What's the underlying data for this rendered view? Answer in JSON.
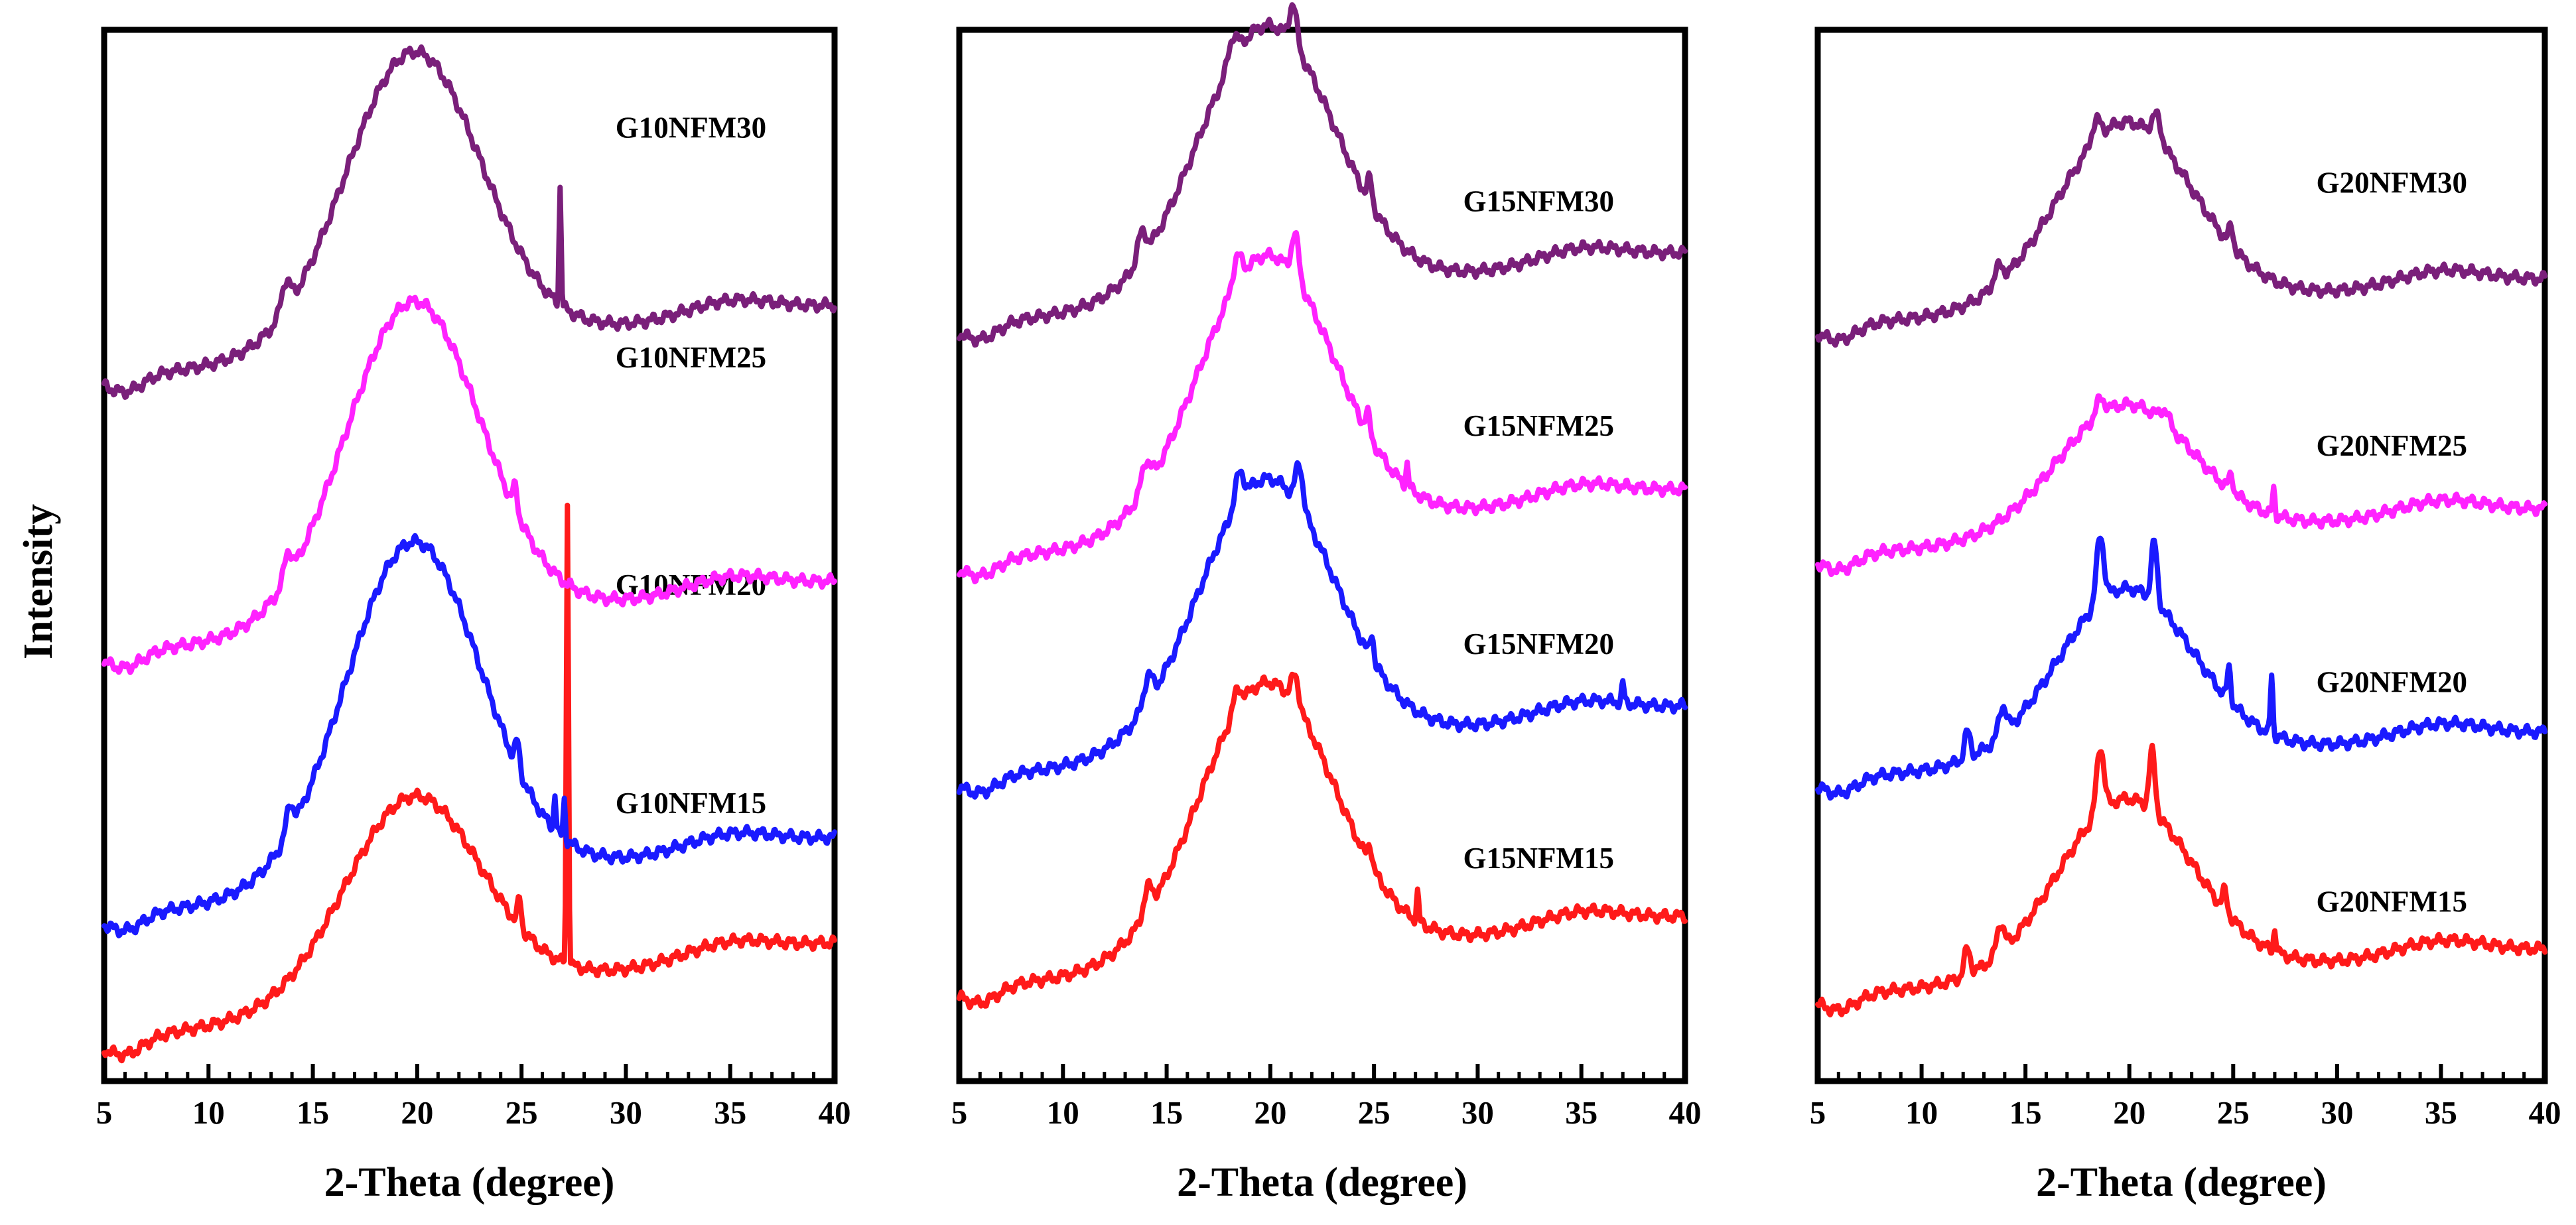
{
  "figure": {
    "ylabel": "Intensity"
  },
  "chart_data": [
    {
      "type": "line",
      "title": "",
      "xlabel": "2-Theta (degree)",
      "ylabel": "Intensity",
      "xlim": [
        5,
        40
      ],
      "ylim": [
        0,
        8
      ],
      "xticks": [
        "5",
        "10",
        "15",
        "20",
        "25",
        "30",
        "35",
        "40"
      ],
      "series": [
        {
          "name": "G10NFM15",
          "color": "#ff1a1a",
          "base": 0.3,
          "bump": 1.55,
          "tail": 0.75,
          "label": {
            "x": 29.5,
            "y": 2.04
          },
          "peaks": [
            {
              "x": 27.2,
              "h": 3.5,
              "w": 0.07
            },
            {
              "x": 24.9,
              "h": 0.22,
              "w": 0.12
            }
          ]
        },
        {
          "name": "G10NFM20",
          "color": "#1a1aff",
          "base": 1.25,
          "bump": 2.6,
          "tail": 0.6,
          "label": {
            "x": 29.5,
            "y": 3.7
          },
          "peaks": [
            {
              "x": 26.6,
              "h": 0.28,
              "w": 0.07
            },
            {
              "x": 27.05,
              "h": 0.3,
              "w": 0.07
            },
            {
              "x": 13.9,
              "h": 0.2,
              "w": 0.25
            },
            {
              "x": 24.8,
              "h": 0.2,
              "w": 0.15
            }
          ]
        },
        {
          "name": "G10NFM25",
          "color": "#ff22ff",
          "base": 3.25,
          "bump": 2.45,
          "tail": 0.55,
          "label": {
            "x": 29.5,
            "y": 5.43
          },
          "peaks": [
            {
              "x": 13.8,
              "h": 0.2,
              "w": 0.25
            },
            {
              "x": 24.7,
              "h": 0.18,
              "w": 0.15
            }
          ]
        },
        {
          "name": "G10NFM30",
          "color": "#7a1f7a",
          "base": 5.35,
          "bump": 2.25,
          "tail": 0.55,
          "label": {
            "x": 29.5,
            "y": 7.18
          },
          "peaks": [
            {
              "x": 26.85,
              "h": 0.9,
              "w": 0.07
            },
            {
              "x": 13.7,
              "h": 0.22,
              "w": 0.3
            }
          ]
        }
      ]
    },
    {
      "type": "line",
      "title": "",
      "xlabel": "2-Theta (degree)",
      "ylabel": "",
      "xlim": [
        5,
        40
      ],
      "ylim": [
        0,
        8
      ],
      "xticks": [
        "5",
        "10",
        "15",
        "20",
        "25",
        "30",
        "35",
        "40"
      ],
      "series": [
        {
          "name": "G15NFM15",
          "color": "#ff1a1a",
          "base": 0.7,
          "bump": 2.1,
          "tail": 0.55,
          "label": {
            "x": 29.3,
            "y": 1.62
          },
          "peaks": [
            {
              "x": 18.4,
              "h": 0.15,
              "w": 0.3
            },
            {
              "x": 21.2,
              "h": 0.22,
              "w": 0.25
            },
            {
              "x": 27.1,
              "h": 0.22,
              "w": 0.08
            },
            {
              "x": 24.8,
              "h": 0.15,
              "w": 0.15
            },
            {
              "x": 14.1,
              "h": 0.18,
              "w": 0.3
            }
          ]
        },
        {
          "name": "G15NFM20",
          "color": "#1a1aff",
          "base": 2.3,
          "bump": 2.05,
          "tail": 0.55,
          "label": {
            "x": 29.3,
            "y": 3.25
          },
          "peaks": [
            {
              "x": 18.5,
              "h": 0.22,
              "w": 0.3
            },
            {
              "x": 21.4,
              "h": 0.32,
              "w": 0.25
            },
            {
              "x": 24.9,
              "h": 0.2,
              "w": 0.12
            },
            {
              "x": 37.0,
              "h": 0.15,
              "w": 0.08
            },
            {
              "x": 14.1,
              "h": 0.2,
              "w": 0.3
            }
          ]
        },
        {
          "name": "G15NFM25",
          "color": "#ff22ff",
          "base": 3.95,
          "bump": 2.1,
          "tail": 0.55,
          "label": {
            "x": 29.3,
            "y": 4.91
          },
          "peaks": [
            {
              "x": 18.4,
              "h": 0.2,
              "w": 0.3
            },
            {
              "x": 21.2,
              "h": 0.32,
              "w": 0.25
            },
            {
              "x": 26.6,
              "h": 0.18,
              "w": 0.08
            },
            {
              "x": 24.7,
              "h": 0.15,
              "w": 0.15
            },
            {
              "x": 14.0,
              "h": 0.2,
              "w": 0.3
            }
          ]
        },
        {
          "name": "G15NFM30",
          "color": "#7a1f7a",
          "base": 5.75,
          "bump": 2.05,
          "tail": 0.55,
          "label": {
            "x": 29.3,
            "y": 6.62
          },
          "peaks": [
            {
              "x": 18.2,
              "h": 0.18,
              "w": 0.3
            },
            {
              "x": 21.1,
              "h": 0.3,
              "w": 0.25
            },
            {
              "x": 24.8,
              "h": 0.18,
              "w": 0.15
            },
            {
              "x": 13.8,
              "h": 0.2,
              "w": 0.3
            }
          ]
        }
      ]
    },
    {
      "type": "line",
      "title": "",
      "xlabel": "2-Theta (degree)",
      "ylabel": "",
      "xlim": [
        5,
        40
      ],
      "ylim": [
        0,
        8
      ],
      "xticks": [
        "5",
        "10",
        "15",
        "20",
        "25",
        "30",
        "35",
        "40"
      ],
      "series": [
        {
          "name": "G20NFM15",
          "color": "#ff1a1a",
          "base": 0.65,
          "bump": 1.35,
          "tail": 0.35,
          "label": {
            "x": 29.0,
            "y": 1.29
          },
          "peaks": [
            {
              "x": 18.6,
              "h": 0.5,
              "w": 0.25
            },
            {
              "x": 21.1,
              "h": 0.45,
              "w": 0.2
            },
            {
              "x": 12.2,
              "h": 0.2,
              "w": 0.2
            },
            {
              "x": 13.8,
              "h": 0.22,
              "w": 0.25
            },
            {
              "x": 24.6,
              "h": 0.15,
              "w": 0.15
            },
            {
              "x": 27.0,
              "h": 0.18,
              "w": 0.08
            }
          ]
        },
        {
          "name": "G20NFM20",
          "color": "#1a1aff",
          "base": 2.3,
          "bump": 1.3,
          "tail": 0.35,
          "label": {
            "x": 29.0,
            "y": 2.96
          },
          "peaks": [
            {
              "x": 18.6,
              "h": 0.5,
              "w": 0.25
            },
            {
              "x": 21.2,
              "h": 0.45,
              "w": 0.2
            },
            {
              "x": 12.2,
              "h": 0.2,
              "w": 0.2
            },
            {
              "x": 13.9,
              "h": 0.22,
              "w": 0.25
            },
            {
              "x": 24.8,
              "h": 0.25,
              "w": 0.12
            },
            {
              "x": 26.85,
              "h": 0.45,
              "w": 0.08
            }
          ]
        },
        {
          "name": "G20NFM25",
          "color": "#ff22ff",
          "base": 4.0,
          "bump": 1.0,
          "tail": 0.35,
          "label": {
            "x": 29.0,
            "y": 4.76
          },
          "peaks": [
            {
              "x": 18.6,
              "h": 0.12,
              "w": 0.3
            },
            {
              "x": 21.7,
              "h": 0.1,
              "w": 0.3
            },
            {
              "x": 26.95,
              "h": 0.2,
              "w": 0.08
            },
            {
              "x": 24.9,
              "h": 0.12,
              "w": 0.15
            }
          ]
        },
        {
          "name": "G20NFM30",
          "color": "#7a1f7a",
          "base": 5.75,
          "bump": 1.4,
          "tail": 0.35,
          "label": {
            "x": 29.0,
            "y": 6.76
          },
          "peaks": [
            {
              "x": 18.4,
              "h": 0.15,
              "w": 0.3
            },
            {
              "x": 21.3,
              "h": 0.18,
              "w": 0.3
            },
            {
              "x": 24.9,
              "h": 0.15,
              "w": 0.15
            },
            {
              "x": 13.7,
              "h": 0.12,
              "w": 0.3
            }
          ]
        }
      ]
    }
  ]
}
